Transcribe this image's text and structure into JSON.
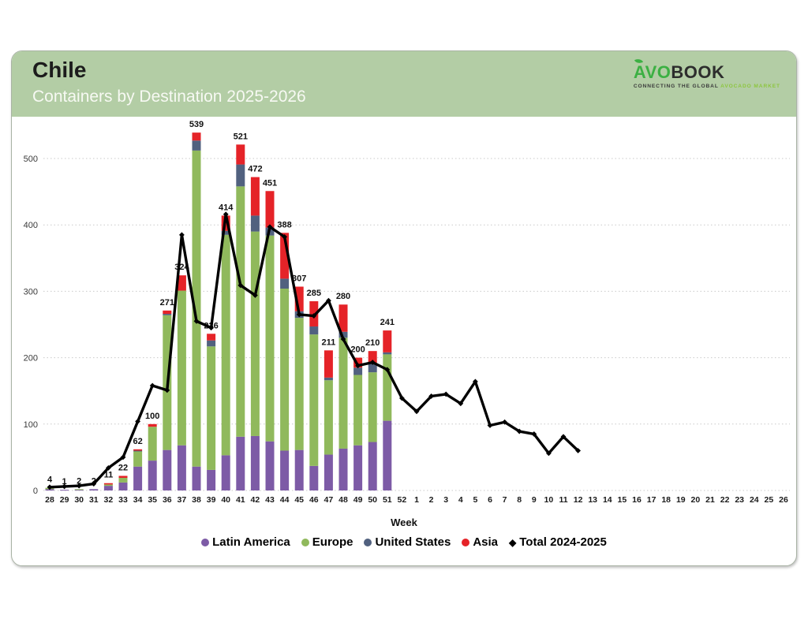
{
  "header": {
    "title": "Chile",
    "subtitle": "Containers by Destination 2025-2026"
  },
  "logo": {
    "brand_avo": "AVO",
    "brand_book": "BOOK",
    "tagline_dark": "CONNECTING THE GLOBAL",
    "tagline_green": "AVOCADO MARKET"
  },
  "chart_data": {
    "type": "stacked-bar-line",
    "title": "Containers by Destination 2025-2026",
    "xlabel": "Week",
    "ylabel": "",
    "ylim": [
      0,
      560
    ],
    "yticks": [
      0,
      100,
      200,
      300,
      400,
      500
    ],
    "grid": "horizontal-dotted",
    "legend_position": "bottom",
    "categories": [
      "28",
      "29",
      "30",
      "31",
      "32",
      "33",
      "34",
      "35",
      "36",
      "37",
      "38",
      "39",
      "40",
      "41",
      "42",
      "43",
      "44",
      "45",
      "46",
      "47",
      "48",
      "49",
      "50",
      "51",
      "52",
      "1",
      "2",
      "3",
      "4",
      "5",
      "6",
      "7",
      "8",
      "9",
      "10",
      "11",
      "12",
      "13",
      "14",
      "15",
      "16",
      "17",
      "18",
      "19",
      "20",
      "21",
      "22",
      "23",
      "24",
      "25",
      "26"
    ],
    "series": [
      {
        "name": "Latin America",
        "color": "#7d5ba6",
        "values": [
          2,
          1,
          1,
          2,
          7,
          12,
          36,
          45,
          61,
          68,
          36,
          31,
          53,
          81,
          82,
          74,
          60,
          61,
          37,
          54,
          63,
          68,
          73,
          105,
          0,
          0,
          0,
          0,
          0,
          0,
          0,
          0,
          0,
          0,
          0,
          0,
          0,
          0,
          0,
          0,
          0,
          0,
          0,
          0,
          0,
          0,
          0,
          0,
          0,
          0,
          0
        ]
      },
      {
        "name": "Europe",
        "color": "#90b95c",
        "values": [
          2,
          0,
          1,
          0,
          2,
          7,
          23,
          51,
          203,
          233,
          476,
          186,
          332,
          377,
          308,
          310,
          244,
          199,
          198,
          112,
          167,
          106,
          105,
          100,
          0,
          0,
          0,
          0,
          0,
          0,
          0,
          0,
          0,
          0,
          0,
          0,
          0,
          0,
          0,
          0,
          0,
          0,
          0,
          0,
          0,
          0,
          0,
          0,
          0,
          0,
          0
        ]
      },
      {
        "name": "United States",
        "color": "#51617f",
        "values": [
          0,
          0,
          0,
          0,
          0,
          0,
          1,
          0,
          2,
          0,
          15,
          9,
          6,
          33,
          24,
          12,
          15,
          10,
          12,
          4,
          9,
          11,
          13,
          3,
          0,
          0,
          0,
          0,
          0,
          0,
          0,
          0,
          0,
          0,
          0,
          0,
          0,
          0,
          0,
          0,
          0,
          0,
          0,
          0,
          0,
          0,
          0,
          0,
          0,
          0,
          0
        ]
      },
      {
        "name": "Asia",
        "color": "#e52328",
        "values": [
          0,
          0,
          0,
          0,
          2,
          3,
          2,
          4,
          5,
          23,
          12,
          10,
          23,
          30,
          58,
          55,
          69,
          37,
          38,
          41,
          41,
          15,
          19,
          33,
          0,
          0,
          0,
          0,
          0,
          0,
          0,
          0,
          0,
          0,
          0,
          0,
          0,
          0,
          0,
          0,
          0,
          0,
          0,
          0,
          0,
          0,
          0,
          0,
          0,
          0,
          0
        ]
      }
    ],
    "bar_labels": [
      4,
      1,
      2,
      2,
      11,
      22,
      62,
      100,
      271,
      324,
      539,
      236,
      414,
      521,
      472,
      451,
      388,
      307,
      285,
      211,
      280,
      200,
      210,
      241
    ],
    "line_series": {
      "name": "Total 2024-2025",
      "color": "#000000",
      "values": [
        5,
        6,
        7,
        10,
        34,
        50,
        104,
        158,
        151,
        385,
        255,
        245,
        416,
        309,
        294,
        397,
        382,
        265,
        263,
        286,
        228,
        188,
        193,
        182,
        139,
        119,
        142,
        145,
        131,
        164,
        98,
        103,
        89,
        85,
        56,
        81,
        60,
        null,
        null,
        null,
        null,
        null,
        null,
        null,
        null,
        null,
        null,
        null,
        null,
        null,
        null
      ]
    }
  }
}
